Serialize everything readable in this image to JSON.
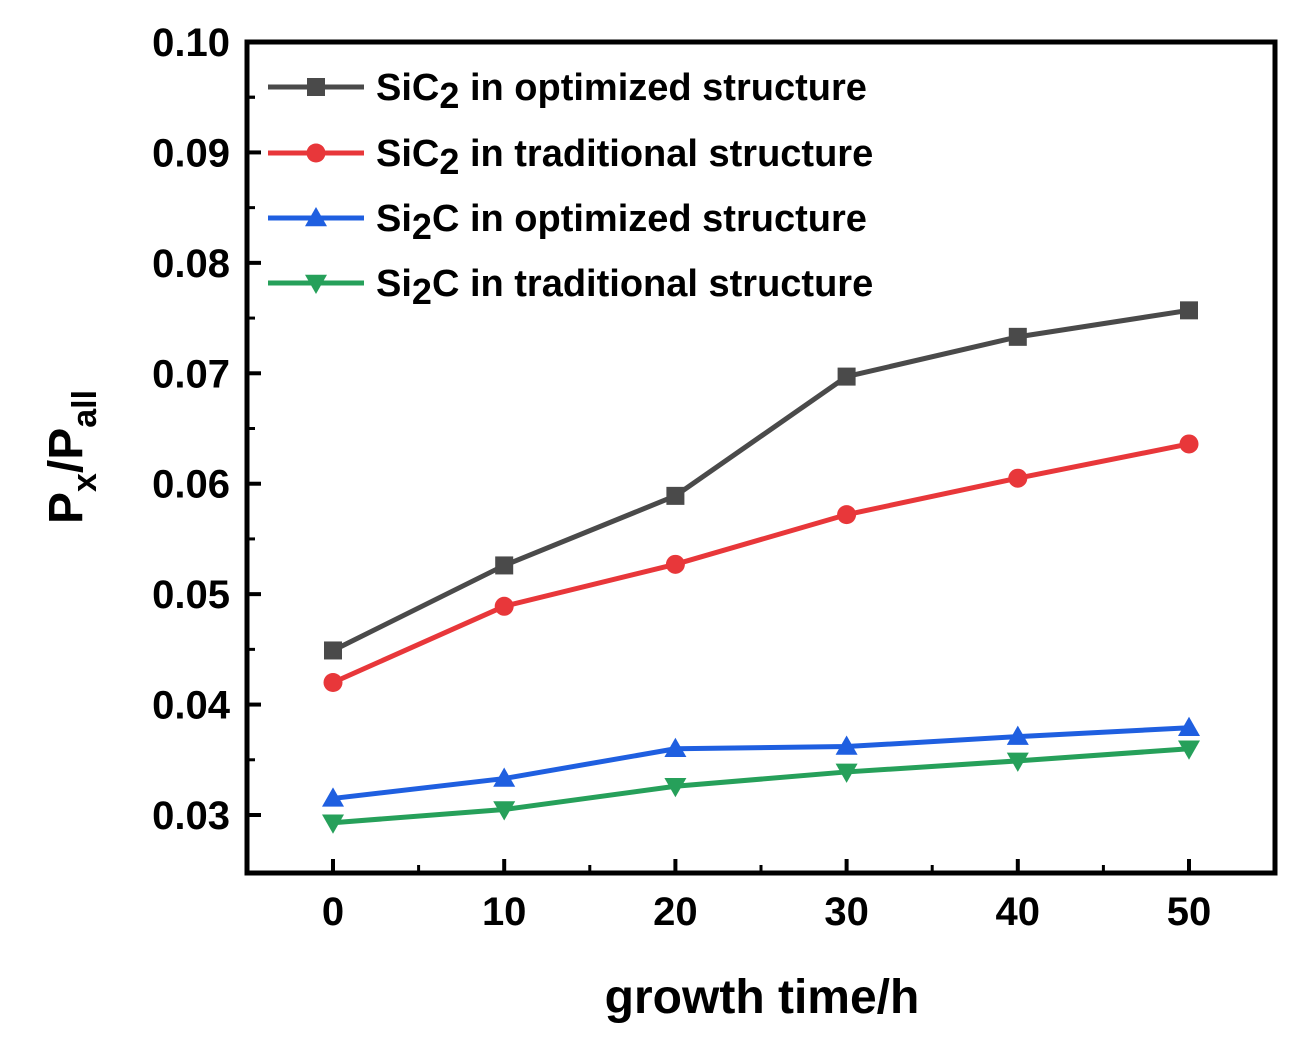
{
  "chart_data": {
    "type": "line",
    "title": "",
    "xlabel": "growth time/h",
    "ylabel": {
      "main": "P",
      "sub1": "x",
      "sep": "/P",
      "sub2": "all"
    },
    "x": [
      0,
      10,
      20,
      30,
      40,
      50
    ],
    "x_tick_labels": [
      "0",
      "10",
      "20",
      "30",
      "40",
      "50"
    ],
    "xlim": [
      -5,
      55
    ],
    "ylim": [
      0.025,
      0.1
    ],
    "y_ticks": [
      0.03,
      0.04,
      0.05,
      0.06,
      0.07,
      0.08,
      0.09,
      0.1
    ],
    "y_tick_labels": [
      "0.03",
      "0.04",
      "0.05",
      "0.06",
      "0.07",
      "0.08",
      "0.09",
      "0.10"
    ],
    "grid": false,
    "legend_position": "top-left",
    "series": [
      {
        "name": "SiC2 in optimized structure",
        "label_parts": {
          "pre": "SiC",
          "sub": "2",
          "post": " in optimized structure"
        },
        "color": "#4a4a4a",
        "marker": "square",
        "values": [
          0.0449,
          0.0526,
          0.0589,
          0.0697,
          0.0733,
          0.0757
        ]
      },
      {
        "name": "SiC2 in traditional structure",
        "label_parts": {
          "pre": "SiC",
          "sub": "2",
          "post": " in traditional structure"
        },
        "color": "#e8373a",
        "marker": "circle",
        "values": [
          0.042,
          0.0489,
          0.0527,
          0.0572,
          0.0605,
          0.0636
        ]
      },
      {
        "name": "Si2C in optimized structure",
        "label_parts": {
          "pre": "Si",
          "sub": "2",
          "post": "C in optimized structure"
        },
        "color": "#1f5fe0",
        "marker": "triangle-up",
        "values": [
          0.0315,
          0.0333,
          0.036,
          0.0362,
          0.0371,
          0.0379
        ]
      },
      {
        "name": "Si2C in traditional structure",
        "label_parts": {
          "pre": "Si",
          "sub": "2",
          "post": "C in traditional structure"
        },
        "color": "#26a05a",
        "marker": "triangle-down",
        "values": [
          0.0293,
          0.0305,
          0.0326,
          0.0339,
          0.0349,
          0.036
        ]
      }
    ]
  }
}
